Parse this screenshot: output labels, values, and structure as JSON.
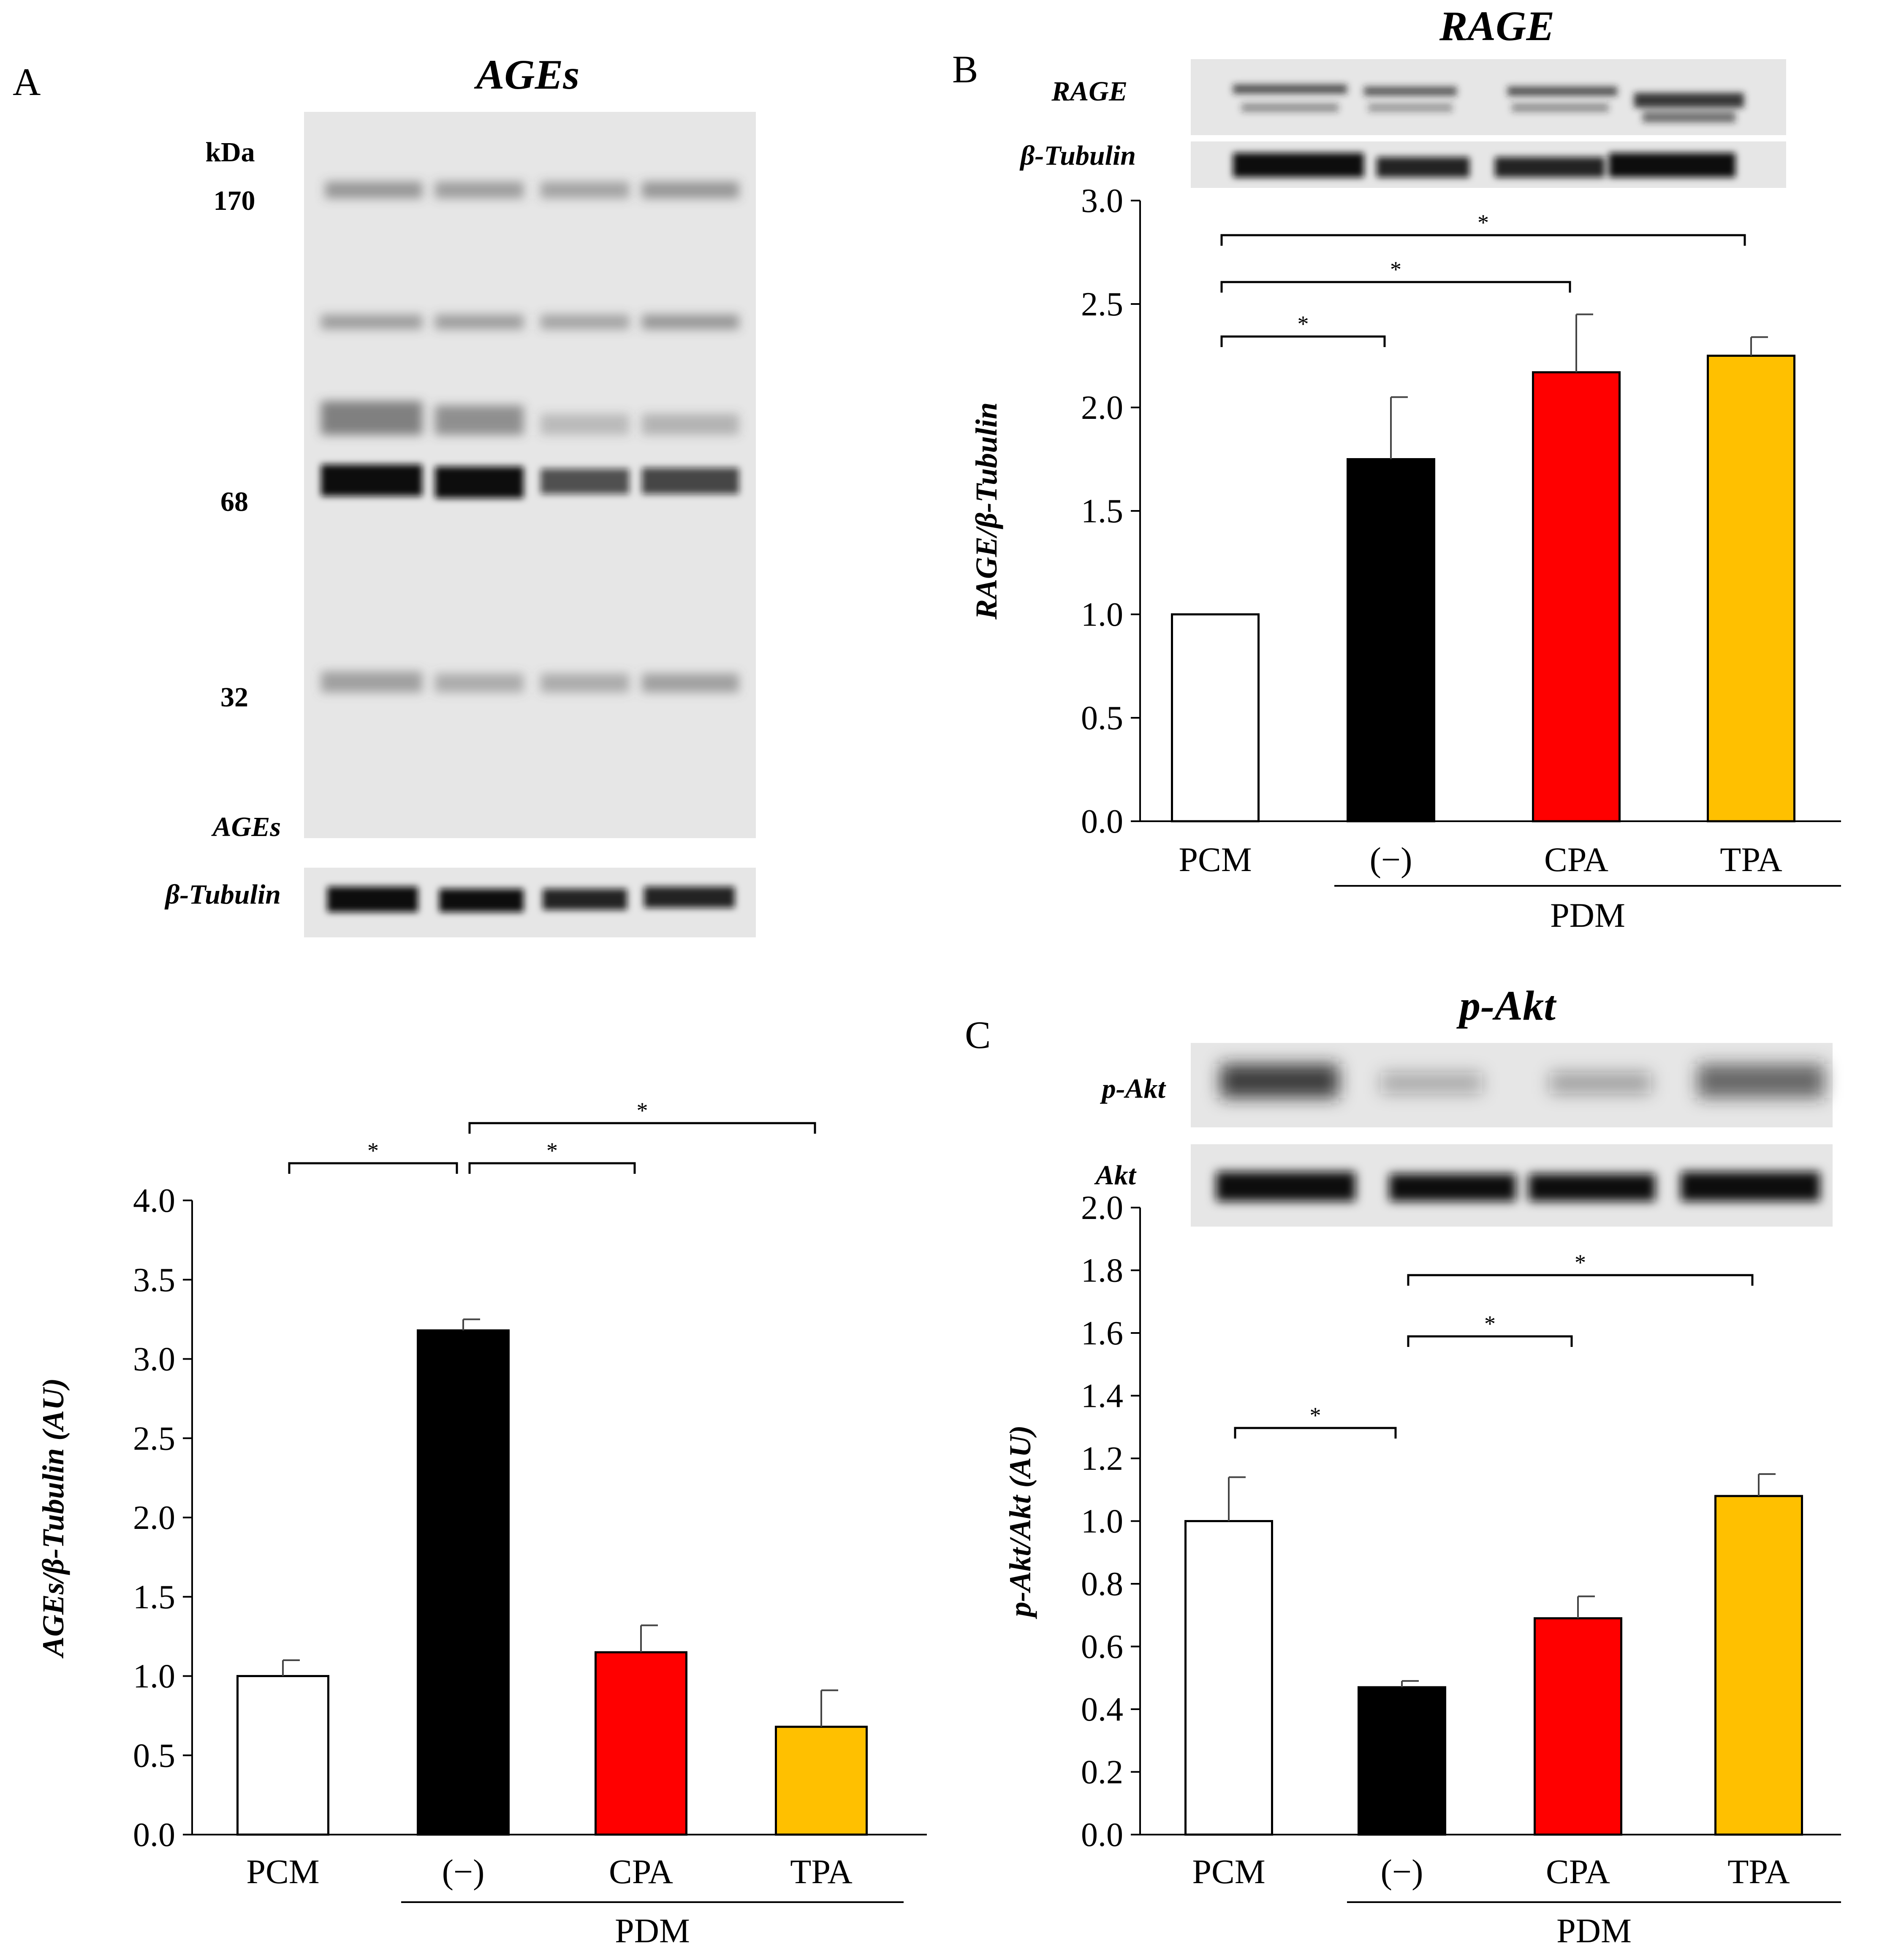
{
  "panel_labels": [
    "A",
    "B",
    "C"
  ],
  "panelA": {
    "blot_title": "AGEs",
    "kda_label": "kDa",
    "markers": [
      "170",
      "68",
      "32"
    ],
    "blot_label_main": "AGEs",
    "blot_label_loading": "β-Tubulin"
  },
  "panelB": {
    "blot_title": "RAGE",
    "blot_label_main": "RAGE",
    "blot_label_loading": "β-Tubulin"
  },
  "panelC": {
    "blot_title": "p-Akt",
    "blot_label_main": "p-Akt",
    "blot_label_loading": "Akt"
  },
  "group_label": "PDM",
  "colors": {
    "PCM": "#ffffff",
    "(−)": "#000000",
    "CPA": "#ff0000",
    "TPA": "#ffc000"
  },
  "chart_data": [
    {
      "type": "bar",
      "panel": "A",
      "categories": [
        "PCM",
        "(−)",
        "CPA",
        "TPA"
      ],
      "values": [
        1.0,
        3.18,
        1.15,
        0.68
      ],
      "errors": [
        0.1,
        0.07,
        0.17,
        0.23
      ],
      "ylabel": "AGEs/β-Tubulin (AU)",
      "ylim": [
        0,
        4.0
      ],
      "yticks": [
        "0.0",
        "0.5",
        "1.0",
        "1.5",
        "2.0",
        "2.5",
        "3.0",
        "3.5",
        "4.0"
      ],
      "significance": [
        {
          "from": 0,
          "to": 1,
          "label": "*"
        },
        {
          "from": 1,
          "to": 2,
          "label": "*"
        },
        {
          "from": 1,
          "to": 3,
          "label": "*"
        }
      ]
    },
    {
      "type": "bar",
      "panel": "B",
      "categories": [
        "PCM",
        "(−)",
        "CPA",
        "TPA"
      ],
      "values": [
        1.0,
        1.75,
        2.17,
        2.25
      ],
      "errors": [
        0.0,
        0.3,
        0.28,
        0.09
      ],
      "ylabel": "RAGE/β-Tubulin",
      "ylim": [
        0,
        3.0
      ],
      "yticks": [
        "0.0",
        "0.5",
        "1.0",
        "1.5",
        "2.0",
        "2.5",
        "3.0"
      ],
      "significance": [
        {
          "from": 0,
          "to": 1,
          "label": "*"
        },
        {
          "from": 0,
          "to": 2,
          "label": "*"
        },
        {
          "from": 0,
          "to": 3,
          "label": "*"
        }
      ]
    },
    {
      "type": "bar",
      "panel": "C",
      "categories": [
        "PCM",
        "(−)",
        "CPA",
        "TPA"
      ],
      "values": [
        1.0,
        0.47,
        0.69,
        1.08
      ],
      "errors": [
        0.14,
        0.02,
        0.07,
        0.07
      ],
      "ylabel": "p-Akt/Akt (AU)",
      "ylim": [
        0,
        2.0
      ],
      "yticks": [
        "0.0",
        "0.2",
        "0.4",
        "0.6",
        "0.8",
        "1.0",
        "1.2",
        "1.4",
        "1.6",
        "1.8",
        "2.0"
      ],
      "significance": [
        {
          "from": 0,
          "to": 1,
          "label": "*"
        },
        {
          "from": 1,
          "to": 2,
          "label": "*"
        },
        {
          "from": 1,
          "to": 3,
          "label": "*"
        }
      ]
    }
  ]
}
